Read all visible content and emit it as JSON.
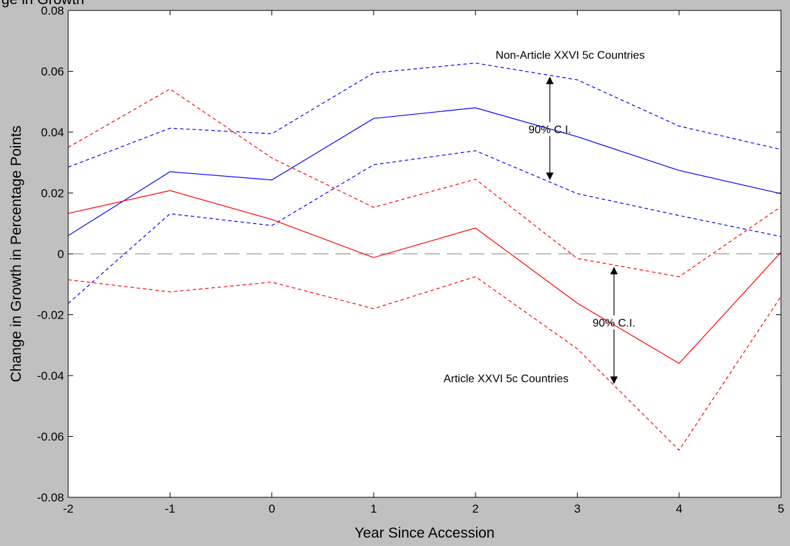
{
  "chart_data": {
    "type": "line",
    "title": "",
    "title_fragment": "ge in Growth",
    "xlabel": "Year Since Accession",
    "ylabel": "Change in Growth in Percentage Points",
    "x": [
      -2,
      -1,
      0,
      1,
      2,
      3,
      4,
      5
    ],
    "xlim": [
      -2,
      5
    ],
    "ylim": [
      -0.08,
      0.08
    ],
    "xticks": [
      "-2",
      "-1",
      "0",
      "1",
      "2",
      "3",
      "4",
      "5"
    ],
    "yticks": [
      "-0.08",
      "-0.06",
      "-0.04",
      "-0.02",
      "0",
      "0.02",
      "0.04",
      "0.06",
      "0.08"
    ],
    "grid": false,
    "colors": {
      "blue": "#0000ff",
      "red": "#ff0000",
      "zero_line": "#808080"
    },
    "series": [
      {
        "group": "non-article",
        "role": "estimate",
        "style": "solid",
        "color": "#0000ff",
        "values": [
          0.006,
          0.027,
          0.0243,
          0.0445,
          0.048,
          0.0385,
          0.0274,
          0.0198
        ]
      },
      {
        "group": "non-article",
        "role": "upper",
        "style": "dashed",
        "color": "#0000ff",
        "values": [
          0.0285,
          0.0413,
          0.0395,
          0.0595,
          0.0627,
          0.0572,
          0.042,
          0.0343
        ]
      },
      {
        "group": "non-article",
        "role": "lower",
        "style": "dashed",
        "color": "#0000ff",
        "values": [
          -0.0163,
          0.0132,
          0.0093,
          0.0293,
          0.0339,
          0.0198,
          0.0126,
          0.0057
        ]
      },
      {
        "group": "article",
        "role": "estimate",
        "style": "solid",
        "color": "#ff0000",
        "values": [
          0.0133,
          0.0208,
          0.0113,
          -0.0012,
          0.0085,
          -0.0162,
          -0.036,
          0.0005
        ]
      },
      {
        "group": "article",
        "role": "upper",
        "style": "dashed",
        "color": "#ff0000",
        "values": [
          0.035,
          0.0542,
          0.0315,
          0.0153,
          0.0245,
          -0.0015,
          -0.0075,
          0.0155
        ]
      },
      {
        "group": "article",
        "role": "lower",
        "style": "dashed",
        "color": "#ff0000",
        "values": [
          -0.0085,
          -0.0125,
          -0.0093,
          -0.018,
          -0.0075,
          -0.0312,
          -0.0645,
          -0.014
        ]
      }
    ],
    "zero_line": {
      "y": 0,
      "style": "long-dash"
    },
    "annotations": [
      {
        "text": "Non-Article XXVI 5c Countries",
        "x": 2.93,
        "y": 0.0655
      },
      {
        "text": "90% C.I.",
        "x": 2.73,
        "y": 0.041
      },
      {
        "text": "90% C.I.",
        "x": 3.36,
        "y": -0.0225
      },
      {
        "text": "Article XXVI 5c Countries",
        "x": 2.3,
        "y": -0.0408
      }
    ],
    "arrows": [
      {
        "x": 2.73,
        "from_y": 0.041,
        "to_y": 0.058
      },
      {
        "x": 2.73,
        "from_y": 0.041,
        "to_y": 0.0245
      },
      {
        "x": 3.36,
        "from_y": -0.0225,
        "to_y": -0.0045
      },
      {
        "x": 3.36,
        "from_y": -0.0225,
        "to_y": -0.0425
      }
    ]
  }
}
